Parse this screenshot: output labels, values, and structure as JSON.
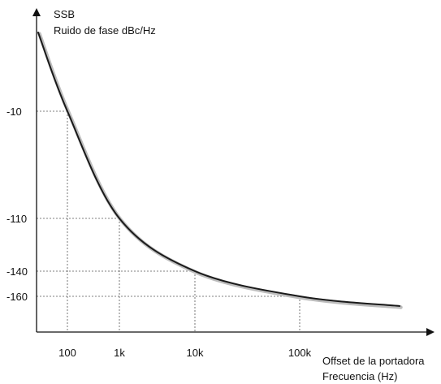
{
  "chart_data": {
    "type": "line",
    "ylabel_lines": [
      "SSB",
      "Ruido de fase dBc/Hz"
    ],
    "xlabel_lines": [
      "Offset de la portadora",
      "Frecuencia (Hz)"
    ],
    "x_ticks": [
      "100",
      "1k",
      "10k",
      "100k"
    ],
    "y_ticks": [
      "-10",
      "-110",
      "-140",
      "-160"
    ],
    "series": [
      {
        "x": [
          "100",
          "1k",
          "10k",
          "100k"
        ],
        "y": [
          -10,
          -110,
          -140,
          -160
        ]
      }
    ],
    "grid": false,
    "reference_lines": "dashed guides from each marked point to both axes",
    "colors": {
      "curve": "#1a1a1a",
      "curve_shadow": "#bdbdbd",
      "axis": "#111111",
      "guide": "#555555"
    }
  }
}
